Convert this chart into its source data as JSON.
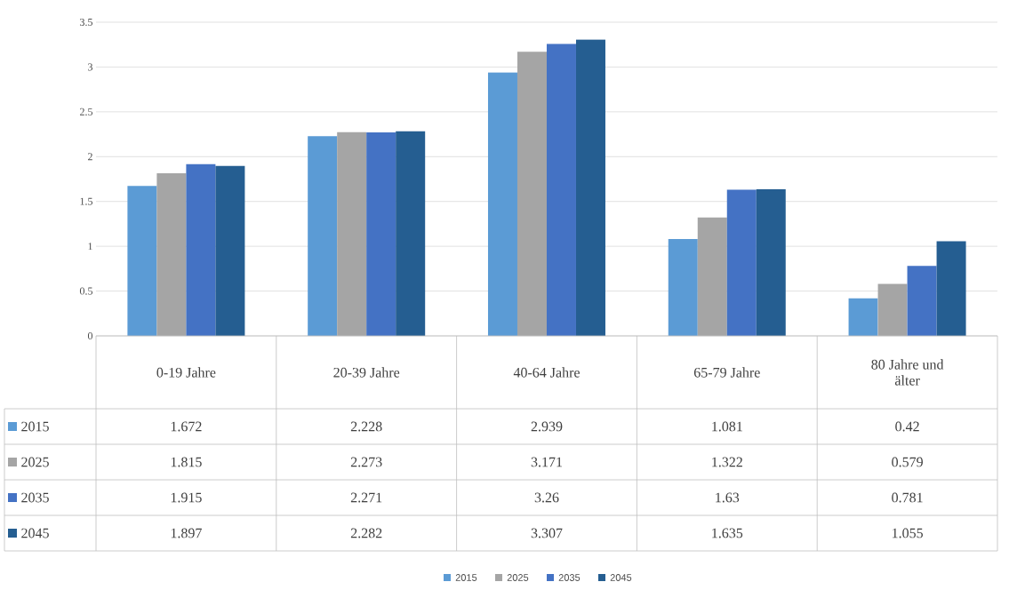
{
  "chart_data": {
    "type": "bar",
    "categories": [
      "0-19 Jahre",
      "20-39 Jahre",
      "40-64 Jahre",
      "65-79 Jahre",
      "80 Jahre und älter"
    ],
    "series": [
      {
        "name": "2015",
        "color": "#5b9bd5",
        "values": [
          1.672,
          2.228,
          2.939,
          1.081,
          0.42
        ]
      },
      {
        "name": "2025",
        "color": "#a5a5a5",
        "values": [
          1.815,
          2.273,
          3.171,
          1.322,
          0.579
        ]
      },
      {
        "name": "2035",
        "color": "#4472c4",
        "values": [
          1.915,
          2.271,
          3.26,
          1.63,
          0.781
        ]
      },
      {
        "name": "2045",
        "color": "#255e91",
        "values": [
          1.897,
          2.282,
          3.307,
          1.635,
          1.055
        ]
      }
    ],
    "ylim": [
      0,
      3.5
    ],
    "yticks": [
      0,
      0.5,
      1,
      1.5,
      2,
      2.5,
      3,
      3.5
    ],
    "grid": "y",
    "legend": "bottom",
    "data_labels": true
  }
}
